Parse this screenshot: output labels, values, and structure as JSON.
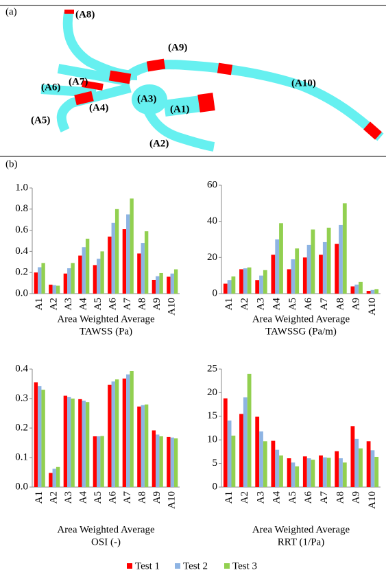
{
  "panels": [
    "(a)",
    "(b)"
  ],
  "diagram": {
    "labels": [
      "(A1)",
      "(A2)",
      "(A3)",
      "(A4)",
      "(A5)",
      "(A6)",
      "(A7)",
      "(A8)",
      "(A9)",
      "(A10)"
    ]
  },
  "chart_data": [
    {
      "type": "bar",
      "title": "Area Weighted Average",
      "subtitle": "TAWSS (Pa)",
      "categories": [
        "A1",
        "A2",
        "A3",
        "A4",
        "A5",
        "A6",
        "A7",
        "A8",
        "A9",
        "A10"
      ],
      "series": [
        {
          "name": "Test 1",
          "color": "#ff0000",
          "values": [
            0.2,
            0.085,
            0.19,
            0.36,
            0.27,
            0.54,
            0.61,
            0.38,
            0.13,
            0.16
          ]
        },
        {
          "name": "Test 2",
          "color": "#8eb4e3",
          "values": [
            0.25,
            0.08,
            0.24,
            0.44,
            0.33,
            0.67,
            0.75,
            0.48,
            0.165,
            0.19
          ]
        },
        {
          "name": "Test 3",
          "color": "#92d050",
          "values": [
            0.29,
            0.075,
            0.29,
            0.52,
            0.4,
            0.8,
            0.9,
            0.59,
            0.195,
            0.23
          ]
        }
      ],
      "ylim": [
        0,
        1
      ],
      "yticks": [
        {
          "value": 0,
          "label": "0.0"
        },
        0.2,
        0.4,
        0.6,
        0.8,
        {
          "value": 1,
          "label": "1.0"
        }
      ]
    },
    {
      "type": "bar",
      "title": "Area Weighted Average",
      "subtitle": "TAWSSG (Pa/m)",
      "categories": [
        "A1",
        "A2",
        "A3",
        "A4",
        "A5",
        "A6",
        "A7",
        "A8",
        "A9",
        "A10"
      ],
      "series": [
        {
          "name": "Test 1",
          "color": "#ff0000",
          "values": [
            5.5,
            13.5,
            7.5,
            21.5,
            13.5,
            20,
            21.5,
            27.5,
            4,
            1.5
          ]
        },
        {
          "name": "Test 2",
          "color": "#8eb4e3",
          "values": [
            7.5,
            14,
            10,
            30,
            19,
            27,
            28.5,
            38,
            5,
            2
          ]
        },
        {
          "name": "Test 3",
          "color": "#92d050",
          "values": [
            9.5,
            14.5,
            13,
            39,
            25,
            35.5,
            36.5,
            50,
            6.5,
            2.5
          ]
        }
      ],
      "ylim": [
        0,
        60
      ],
      "yticks": [
        0,
        20,
        40,
        60
      ]
    },
    {
      "type": "bar",
      "title": "Area Weighted Average",
      "subtitle": "OSI (-)",
      "categories": [
        "A1",
        "A2",
        "A3",
        "A4",
        "A5",
        "A6",
        "A7",
        "A8",
        "A9",
        "A10"
      ],
      "series": [
        {
          "name": "Test 1",
          "color": "#ff0000",
          "values": [
            0.355,
            0.048,
            0.31,
            0.298,
            0.172,
            0.347,
            0.368,
            0.273,
            0.192,
            0.17
          ]
        },
        {
          "name": "Test 2",
          "color": "#8eb4e3",
          "values": [
            0.342,
            0.062,
            0.305,
            0.293,
            0.172,
            0.358,
            0.382,
            0.278,
            0.178,
            0.168
          ]
        },
        {
          "name": "Test 3",
          "color": "#92d050",
          "values": [
            0.33,
            0.068,
            0.3,
            0.288,
            0.173,
            0.365,
            0.393,
            0.28,
            0.172,
            0.165
          ]
        }
      ],
      "ylim": [
        0,
        0.4
      ],
      "yticks": [
        {
          "value": 0,
          "label": "0.0"
        },
        0.1,
        0.2,
        0.3,
        0.4
      ]
    },
    {
      "type": "bar",
      "title": "Area Weighted Average",
      "subtitle": "RRT (1/Pa)",
      "categories": [
        "A1",
        "A2",
        "A3",
        "A4",
        "A5",
        "A6",
        "A7",
        "A8",
        "A9",
        "A10"
      ],
      "series": [
        {
          "name": "Test 1",
          "color": "#ff0000",
          "values": [
            18.8,
            15.5,
            14.9,
            9.8,
            6.1,
            6.5,
            6.7,
            7.6,
            12.9,
            9.7
          ]
        },
        {
          "name": "Test 2",
          "color": "#8eb4e3",
          "values": [
            14.1,
            19,
            11.8,
            7.9,
            5.2,
            6.1,
            6.3,
            6.1,
            10.2,
            7.8
          ]
        },
        {
          "name": "Test 3",
          "color": "#92d050",
          "values": [
            10.9,
            24,
            9.7,
            6.7,
            4.4,
            5.8,
            6.2,
            5.2,
            8.2,
            6.4
          ]
        }
      ],
      "ylim": [
        0,
        25
      ],
      "yticks": [
        0,
        5,
        10,
        15,
        20,
        25
      ]
    }
  ]
}
